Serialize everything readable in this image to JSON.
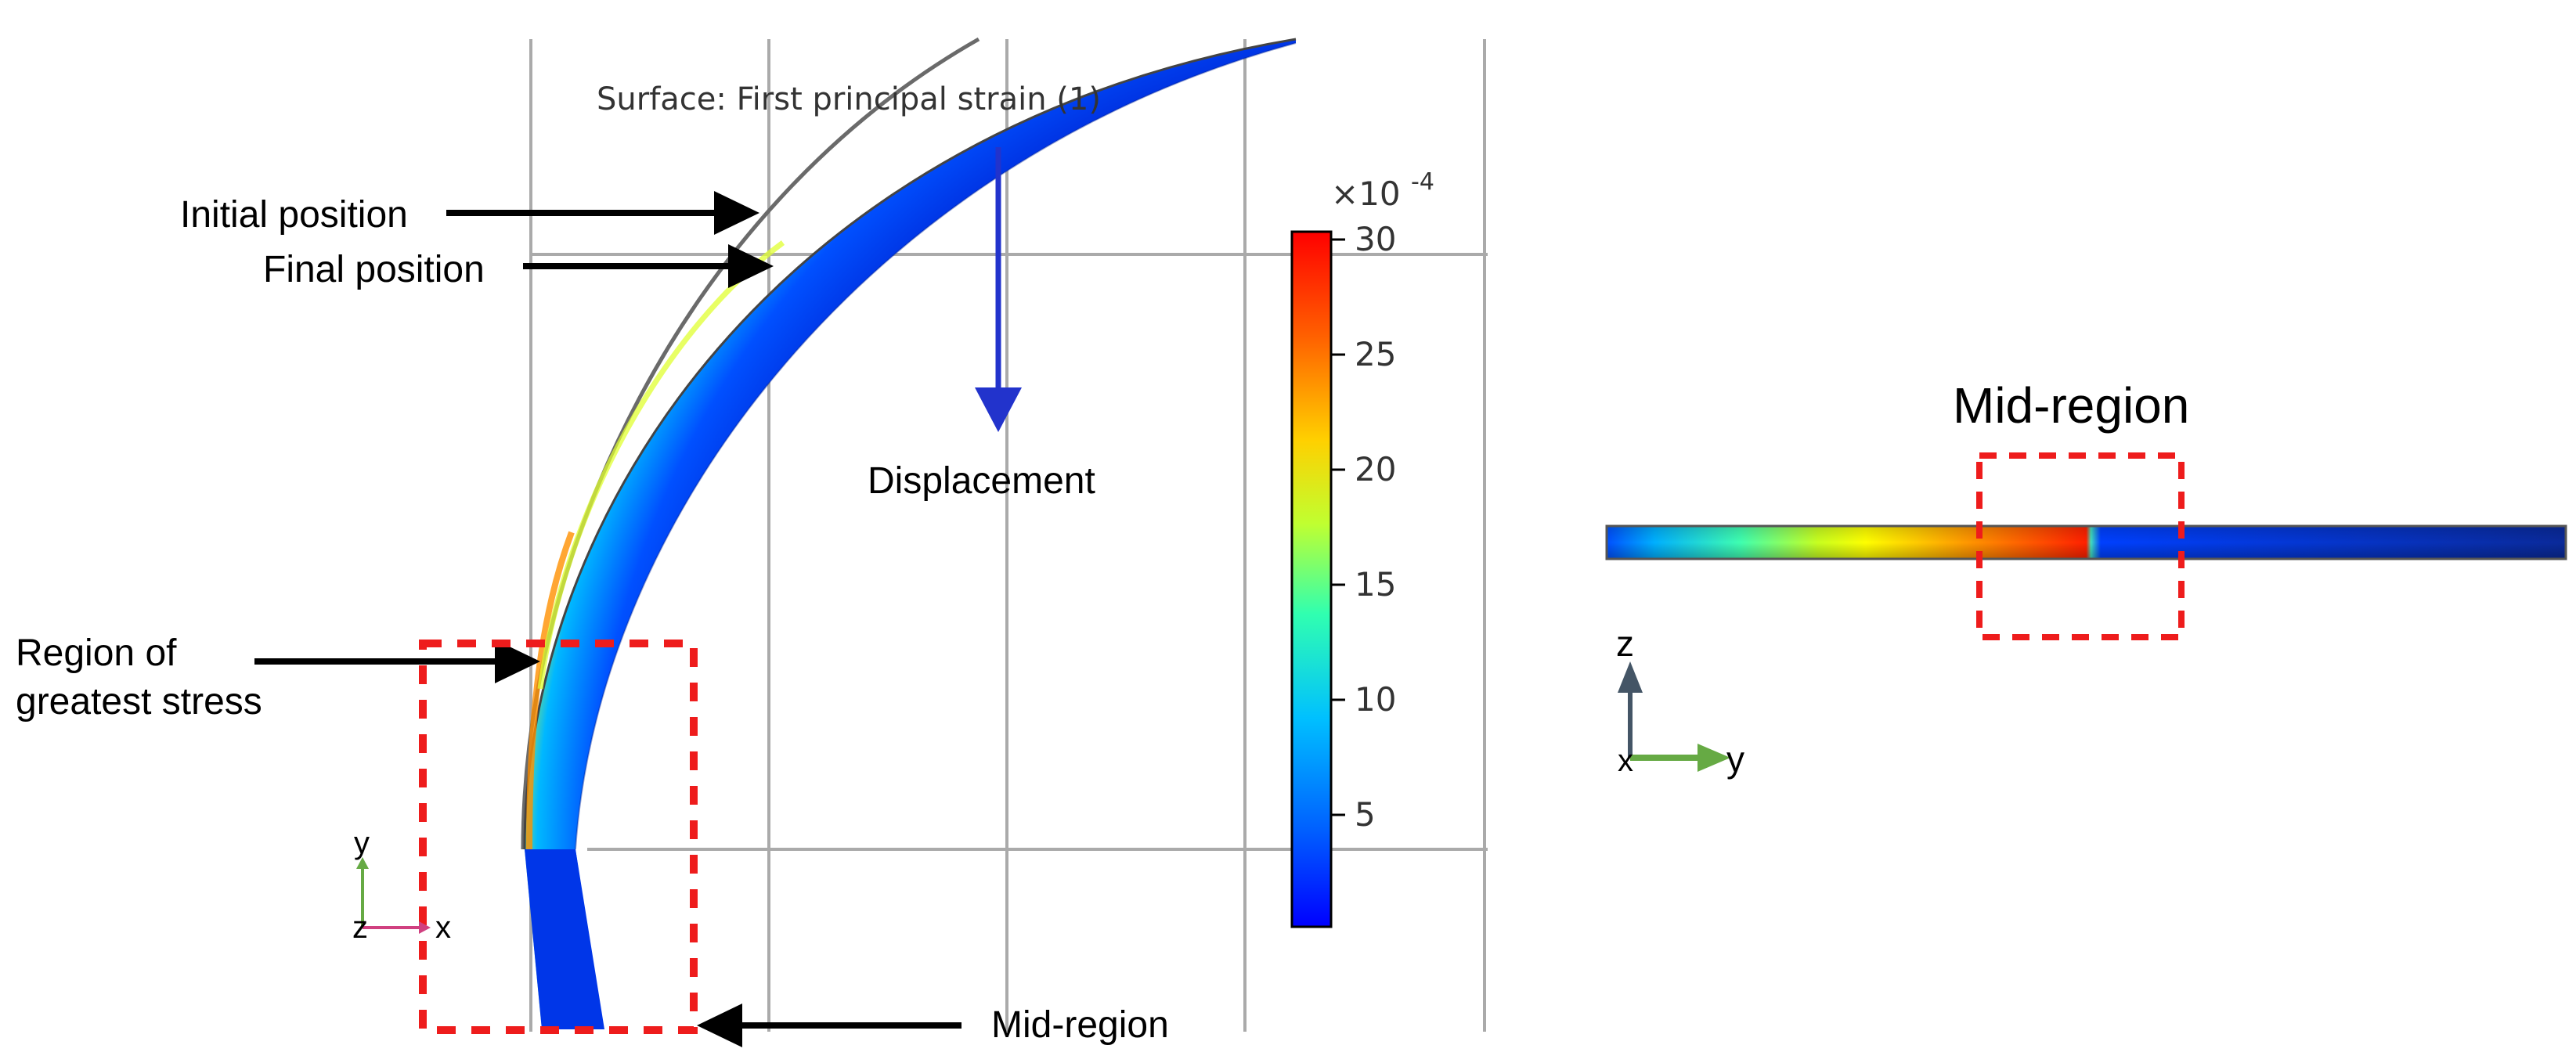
{
  "left_panel": {
    "plot_title": "Surface: First principal strain (1)",
    "labels": {
      "initial_position": "Initial position",
      "final_position": "Final position",
      "displacement": "Displacement",
      "stress_line1": "Region of",
      "stress_line2": "greatest stress",
      "mid_region": "Mid-region"
    },
    "axes": {
      "y": "y",
      "z": "z",
      "x": "x"
    }
  },
  "colorbar": {
    "multiplier_base": "×10",
    "multiplier_exp": "-4",
    "ticks": [
      "30",
      "25",
      "20",
      "15",
      "10",
      "5"
    ],
    "colors": [
      "#0000ff",
      "#0060ff",
      "#00c0ff",
      "#30ffb0",
      "#c0ff30",
      "#ffd000",
      "#ff6000",
      "#ff0000"
    ]
  },
  "right_panel": {
    "mid_region_label": "Mid-region",
    "axes": {
      "z": "z",
      "x": "x",
      "y": "y"
    }
  },
  "colors": {
    "dashed_box": "#ee1c1c",
    "displacement_arrow": "#2233cc",
    "grid": "#aaaaaa",
    "axis_y_arrow": "#66aa44"
  }
}
